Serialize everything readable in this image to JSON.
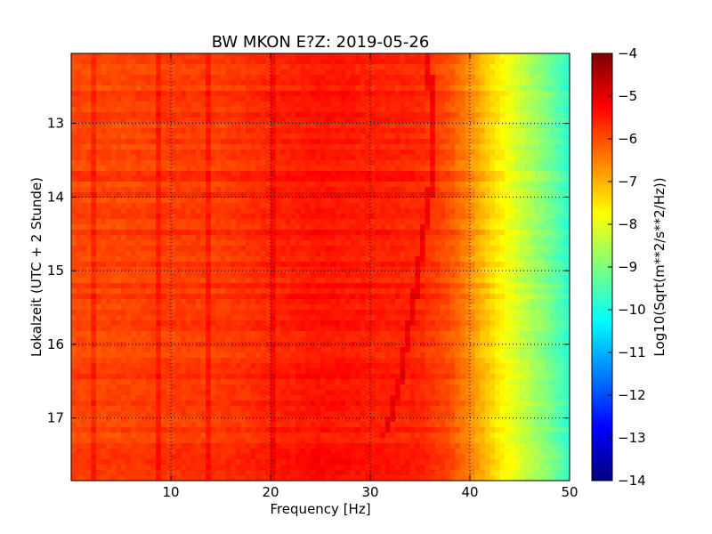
{
  "chart_data": {
    "type": "heatmap",
    "title": "BW MKON E?Z: 2019-05-26",
    "xlabel": "Frequency [Hz]",
    "ylabel": "Lokalzeit (UTC + 2 Stunde)",
    "xlim": [
      0,
      50
    ],
    "ylim": [
      17.85,
      12.05
    ],
    "xticks": [
      10,
      20,
      30,
      40,
      50
    ],
    "yticks": [
      13,
      14,
      15,
      16,
      17
    ],
    "grid": true,
    "colorbar": {
      "label": "Log10(Sqrt(m**2/s**2/Hz))",
      "range": [
        -14,
        -4
      ],
      "ticks": [
        -4,
        -5,
        -6,
        -7,
        -8,
        -9,
        -10,
        -11,
        -12,
        -13,
        -14
      ],
      "colormap": "jet",
      "colors": [
        "#00007f",
        "#0000ff",
        "#007fff",
        "#00ffff",
        "#7fff7f",
        "#ffff00",
        "#ff7f00",
        "#ff0000",
        "#7f0000"
      ]
    },
    "spectral_profile": {
      "frequency_hz": [
        0,
        5,
        10,
        15,
        20,
        25,
        30,
        35,
        38,
        40,
        42,
        44,
        46,
        48,
        50
      ],
      "level": [
        -5.9,
        -5.9,
        -5.8,
        -5.8,
        -5.6,
        -5.4,
        -5.5,
        -5.6,
        -6.0,
        -6.6,
        -7.3,
        -7.9,
        -8.5,
        -9.1,
        -9.8
      ]
    },
    "persistent_lines_hz": [
      2.4,
      8.9,
      13.6,
      20.4
    ],
    "drifting_line": {
      "time_h": [
        12.05,
        13.0,
        14.0,
        15.0,
        15.5,
        16.0,
        16.5,
        17.0,
        17.3
      ],
      "frequency_hz": [
        35.8,
        36.3,
        36.0,
        34.8,
        34.3,
        33.6,
        33.0,
        32.0,
        31.2
      ]
    }
  }
}
